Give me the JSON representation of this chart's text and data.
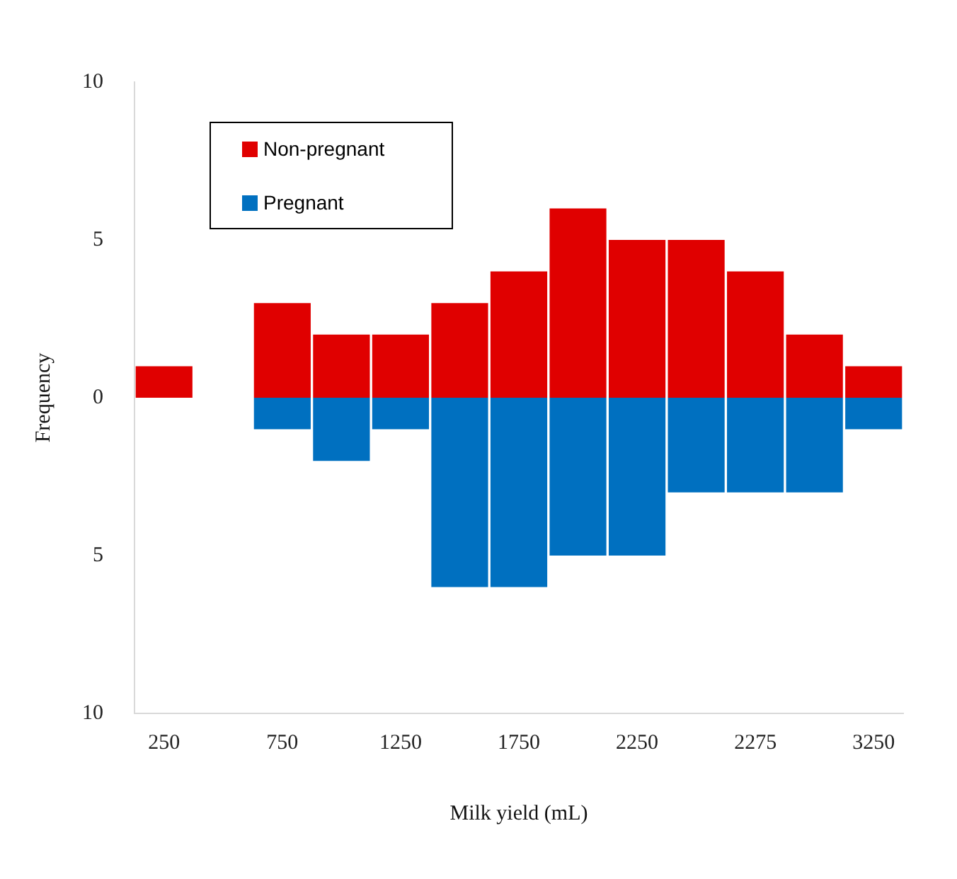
{
  "chart_data": {
    "type": "bar",
    "xlabel": "Milk yield (mL)",
    "ylabel": "Frequency",
    "categories": [
      "250",
      null,
      "750",
      null,
      "1250",
      null,
      "1750",
      null,
      "2250",
      null,
      "2275",
      null,
      "3250"
    ],
    "series": [
      {
        "name": "Non-pregnant",
        "color": "#e00000",
        "values": [
          1,
          0,
          3,
          2,
          2,
          3,
          4,
          6,
          5,
          5,
          4,
          2,
          1
        ]
      },
      {
        "name": "Pregnant",
        "color": "#0070c0",
        "values": [
          0,
          0,
          -1,
          -2,
          -1,
          -6,
          -6,
          -5,
          -5,
          -3,
          -3,
          -3,
          -1
        ]
      }
    ],
    "stacked": true,
    "ylim": [
      -10,
      10
    ],
    "yticks": [
      {
        "value": -10,
        "label": "10"
      },
      {
        "value": -5,
        "label": "5"
      },
      0,
      5,
      10
    ],
    "grid": false,
    "legend": "top left"
  }
}
